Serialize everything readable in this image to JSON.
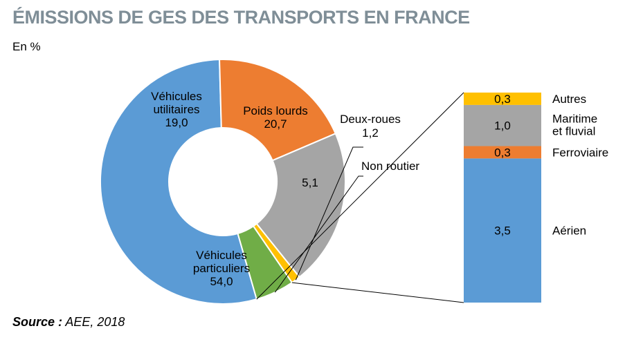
{
  "title": "ÉMISSIONS DE GES DES TRANSPORTS EN FRANCE",
  "unit": "En %",
  "source": {
    "label": "Source :",
    "text": " AEE, 2018"
  },
  "chart_data": [
    {
      "type": "pie",
      "donut": true,
      "slices": [
        {
          "name": [
            "Véhicules",
            "particuliers"
          ],
          "value": 54.0,
          "label": "54,0",
          "color": "#5b9bd5"
        },
        {
          "name": [
            "Véhicules",
            "utilitaires"
          ],
          "value": 19.0,
          "label": "19,0",
          "color": "#ed7d31"
        },
        {
          "name": [
            "Poids lourds"
          ],
          "value": 20.7,
          "label": "20,7",
          "color": "#a5a5a5"
        },
        {
          "name": [
            "Deux-roues"
          ],
          "value": 1.2,
          "label": "1,2",
          "color": "#ffc000"
        },
        {
          "name": [
            "Non routier"
          ],
          "value": 5.1,
          "label": "5,1",
          "color": "#70ad47"
        }
      ]
    },
    {
      "type": "bar",
      "stacked": true,
      "breakdown_of": "Non routier",
      "segments": [
        {
          "name": [
            "Aérien"
          ],
          "value": 3.5,
          "label": "3,5",
          "color": "#5b9bd5"
        },
        {
          "name": [
            "Ferroviaire"
          ],
          "value": 0.3,
          "label": "0,3",
          "color": "#ed7d31"
        },
        {
          "name": [
            "Maritime",
            "et fluvial"
          ],
          "value": 1.0,
          "label": "1,0",
          "color": "#a5a5a5"
        },
        {
          "name": [
            "Autres"
          ],
          "value": 0.3,
          "label": "0,3",
          "color": "#ffc000"
        }
      ]
    }
  ]
}
